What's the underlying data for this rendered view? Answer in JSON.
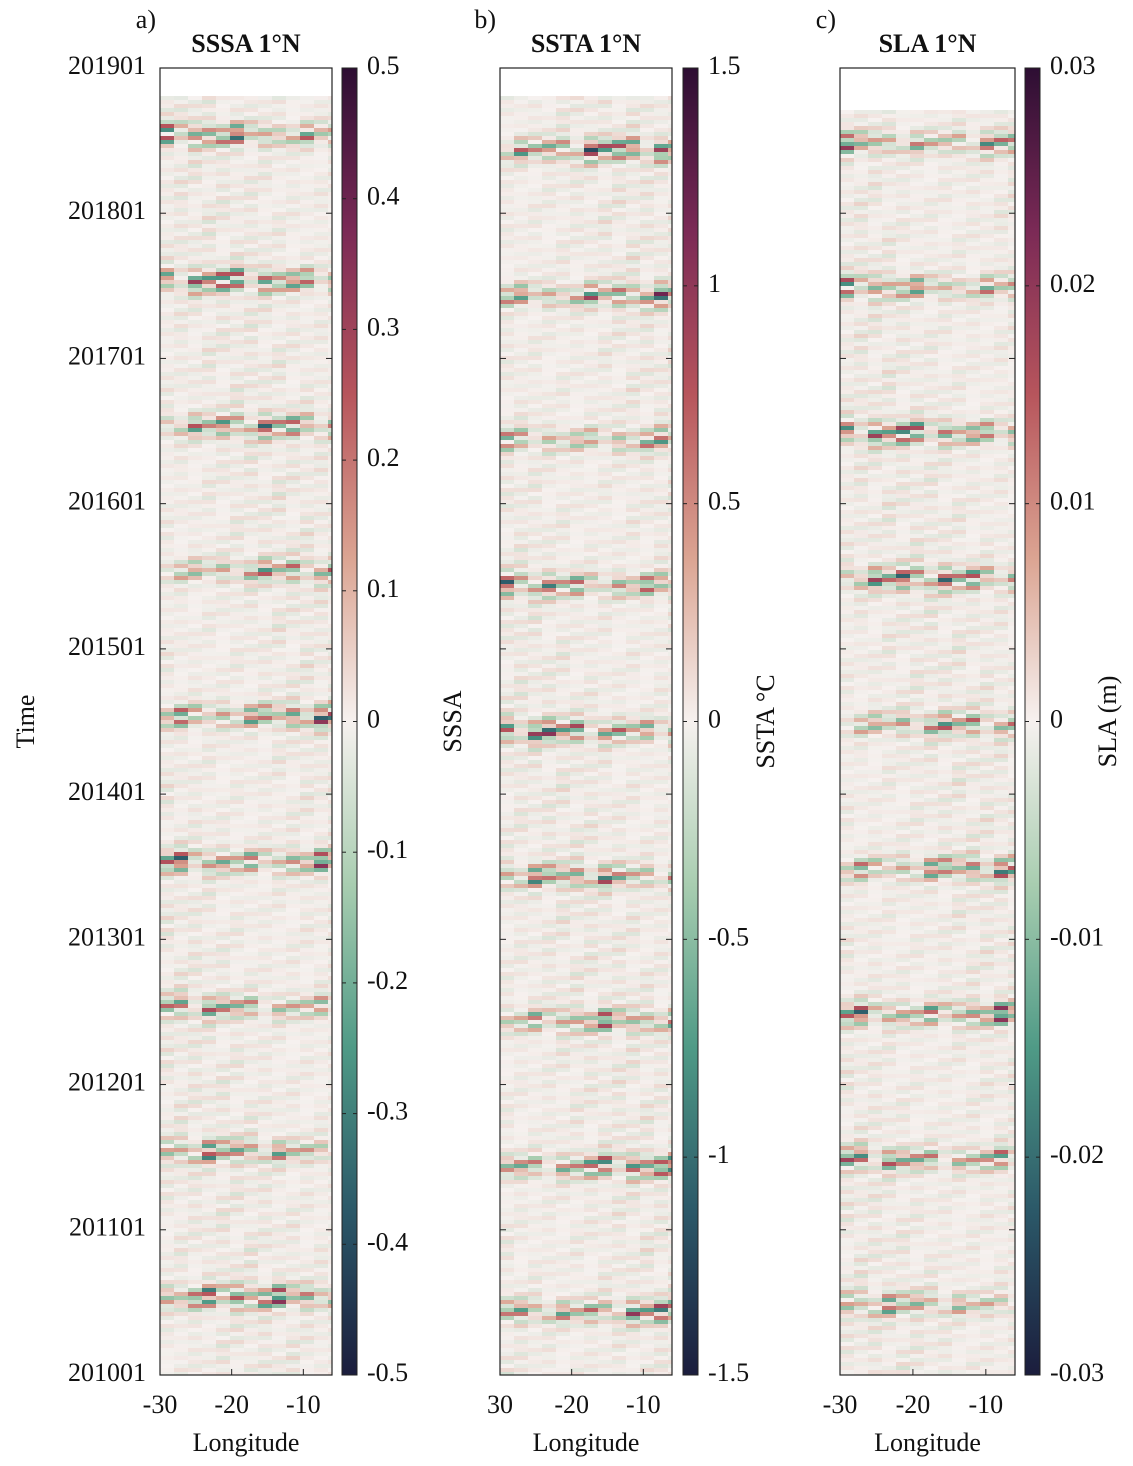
{
  "chart_data": [
    {
      "type": "heatmap",
      "panel_label": "a)",
      "title": "SSSA 1°N",
      "xlabel": "Longitude",
      "ylabel": "Time",
      "colorbar_label": "SSSA",
      "xlim": [
        -30,
        -6
      ],
      "xticks": [
        -30,
        -20,
        -10
      ],
      "ylim": [
        2010,
        2019
      ],
      "show_ytick_labels": true,
      "yticks": [
        {
          "value": 2010,
          "label": "201001"
        },
        {
          "value": 2011,
          "label": "201101"
        },
        {
          "value": 2012,
          "label": "201201"
        },
        {
          "value": 2013,
          "label": "201301"
        },
        {
          "value": 2014,
          "label": "201401"
        },
        {
          "value": 2015,
          "label": "201501"
        },
        {
          "value": 2016,
          "label": "201601"
        },
        {
          "value": 2017,
          "label": "201701"
        },
        {
          "value": 2018,
          "label": "201801"
        },
        {
          "value": 2019,
          "label": "201901"
        }
      ],
      "colorbar_lim": [
        -0.5,
        0.5
      ],
      "colorbar_ticks": [
        0.5,
        0.4,
        0.3,
        0.2,
        0.1,
        0,
        -0.1,
        -0.2,
        -0.3,
        -0.4,
        -0.5
      ],
      "colormap": [
        "#1b1d3d",
        "#2b5868",
        "#4f9a86",
        "#a8cdb0",
        "#f6f1ef",
        "#dba492",
        "#b7555c",
        "#7b2a56",
        "#2d0e33"
      ]
    },
    {
      "type": "heatmap",
      "panel_label": "b)",
      "title": "SSTA 1°N",
      "xlabel": "Longitude",
      "colorbar_label": "SSTA °C",
      "xlim": [
        -30,
        -6
      ],
      "xticks": [
        {
          "value": -30,
          "label": "30"
        },
        -20,
        -10
      ],
      "ylim": [
        2010,
        2019
      ],
      "show_ytick_labels": false,
      "yticks": [
        2010,
        2011,
        2012,
        2013,
        2014,
        2015,
        2016,
        2017,
        2018,
        2019
      ],
      "colorbar_lim": [
        -1.5,
        1.5
      ],
      "colorbar_ticks": [
        1.5,
        1,
        0.5,
        0,
        -0.5,
        -1,
        -1.5
      ],
      "colormap": [
        "#1b1d3d",
        "#2b5868",
        "#4f9a86",
        "#a8cdb0",
        "#f6f1ef",
        "#dba492",
        "#b7555c",
        "#7b2a56",
        "#2d0e33"
      ]
    },
    {
      "type": "heatmap",
      "panel_label": "c)",
      "title": "SLA 1°N",
      "xlabel": "Longitude",
      "colorbar_label": "SLA  (m)",
      "xlim": [
        -30,
        -6
      ],
      "xticks": [
        -30,
        -20,
        -10
      ],
      "ylim": [
        2010,
        2019
      ],
      "show_ytick_labels": false,
      "yticks": [
        2010,
        2011,
        2012,
        2013,
        2014,
        2015,
        2016,
        2017,
        2018,
        2019
      ],
      "colorbar_lim": [
        -0.03,
        0.03
      ],
      "colorbar_ticks": [
        0.03,
        0.02,
        0.01,
        0,
        -0.01,
        -0.02,
        -0.03
      ],
      "colormap": [
        "#1b1d3d",
        "#2b5868",
        "#4f9a86",
        "#a8cdb0",
        "#f6f1ef",
        "#dba492",
        "#b7555c",
        "#7b2a56",
        "#2d0e33"
      ]
    }
  ]
}
